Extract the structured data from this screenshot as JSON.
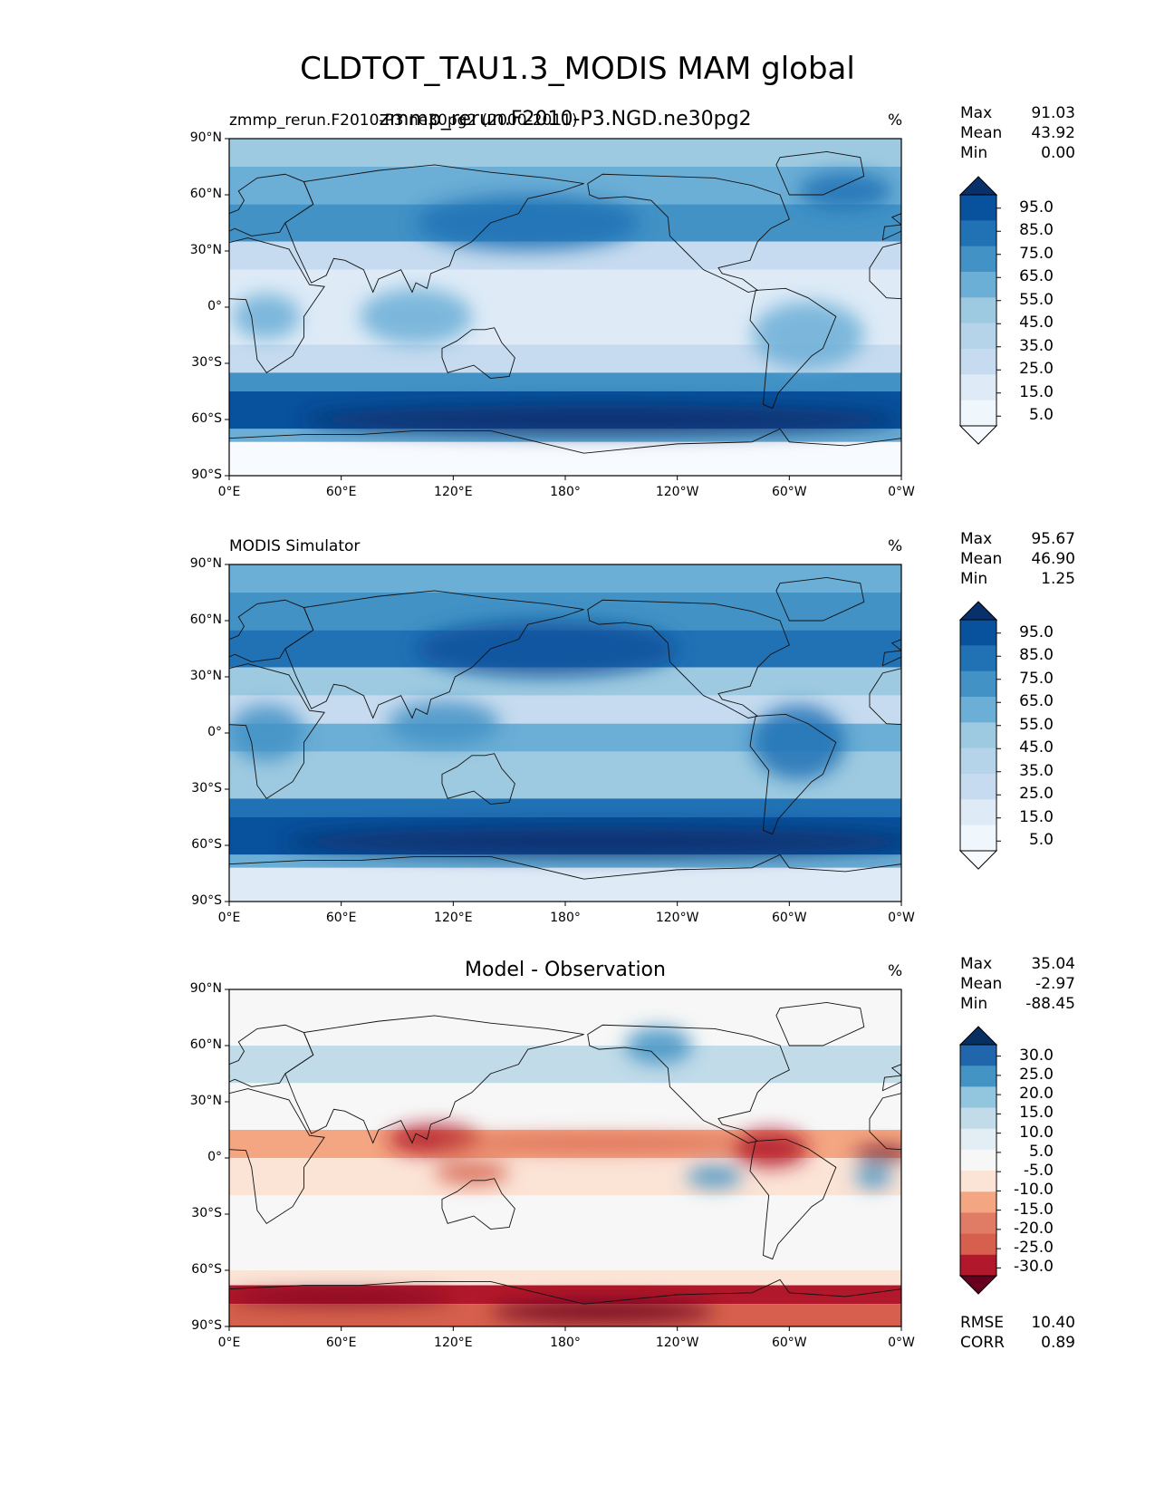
{
  "figure": {
    "title": "CLDTOT_TAU1.3_MODIS MAM global"
  },
  "axes": {
    "lat_ticks": [
      "90°N",
      "60°N",
      "30°N",
      "0°",
      "30°S",
      "60°S",
      "90°S"
    ],
    "lon_ticks": [
      "0°E",
      "60°E",
      "120°E",
      "180°",
      "120°W",
      "60°W",
      "0°W"
    ]
  },
  "panels": [
    {
      "left_title": "zmmp_rerun.F2010-P3.ne30pg2 (2000-2011)",
      "center_title": "zmmp_rerun.F2010-P3.NGD.ne30pg2",
      "units": "%",
      "stats": [
        {
          "label": "Max",
          "value": "91.03"
        },
        {
          "label": "Mean",
          "value": "43.92"
        },
        {
          "label": "Min",
          "value": "0.00"
        }
      ],
      "colorbar": {
        "ticks": [
          "95.0",
          "85.0",
          "75.0",
          "65.0",
          "55.0",
          "45.0",
          "35.0",
          "25.0",
          "15.0",
          "5.0"
        ],
        "colors": [
          "#08306b",
          "#08519c",
          "#2171b5",
          "#4292c6",
          "#6baed6",
          "#9ecae1",
          "#b5d4e9",
          "#c6dbef",
          "#deebf7",
          "#eff6fc",
          "#f7fbff"
        ]
      }
    },
    {
      "left_title": "MODIS Simulator",
      "center_title": "",
      "units": "%",
      "stats": [
        {
          "label": "Max",
          "value": "95.67"
        },
        {
          "label": "Mean",
          "value": "46.90"
        },
        {
          "label": "Min",
          "value": "1.25"
        }
      ],
      "colorbar": {
        "ticks": [
          "95.0",
          "85.0",
          "75.0",
          "65.0",
          "55.0",
          "45.0",
          "35.0",
          "25.0",
          "15.0",
          "5.0"
        ],
        "colors": [
          "#08306b",
          "#08519c",
          "#2171b5",
          "#4292c6",
          "#6baed6",
          "#9ecae1",
          "#b5d4e9",
          "#c6dbef",
          "#deebf7",
          "#eff6fc",
          "#f7fbff"
        ]
      }
    },
    {
      "left_title": "",
      "center_title": "Model - Observation",
      "units": "%",
      "stats": [
        {
          "label": "Max",
          "value": "35.04"
        },
        {
          "label": "Mean",
          "value": "-2.97"
        },
        {
          "label": "Min",
          "value": "-88.45"
        }
      ],
      "bottom_stats": [
        {
          "label": "RMSE",
          "value": "10.40"
        },
        {
          "label": "CORR",
          "value": "0.89"
        }
      ],
      "colorbar": {
        "ticks": [
          "30.0",
          "25.0",
          "20.0",
          "15.0",
          "10.0",
          "5.0",
          "-5.0",
          "-10.0",
          "-15.0",
          "-20.0",
          "-25.0",
          "-30.0"
        ],
        "colors": [
          "#053061",
          "#2166ac",
          "#4393c3",
          "#92c5de",
          "#c1dbe9",
          "#e3eef4",
          "#f7f7f7",
          "#fbe3d6",
          "#f4a582",
          "#e07b65",
          "#d6604d",
          "#b2182b",
          "#67001f"
        ]
      }
    }
  ]
}
